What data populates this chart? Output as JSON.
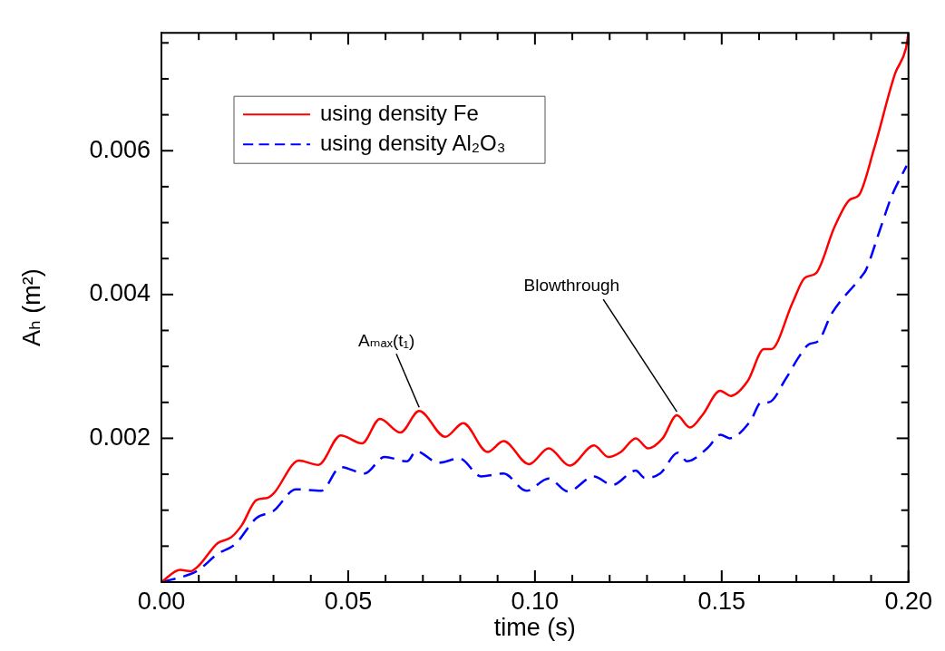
{
  "chart_data": {
    "type": "line",
    "xlabel": "time (s)",
    "ylabel": "Aₕ (m²)",
    "xlim": [
      0,
      0.2
    ],
    "ylim": [
      0,
      0.00764
    ],
    "xticks": [
      {
        "value": 0,
        "label": "0.00"
      },
      {
        "value": 0.01,
        "label": null
      },
      {
        "value": 0.02,
        "label": null
      },
      {
        "value": 0.03,
        "label": null
      },
      {
        "value": 0.04,
        "label": null
      },
      {
        "value": 0.05,
        "label": "0.05"
      },
      {
        "value": 0.06,
        "label": null
      },
      {
        "value": 0.07,
        "label": null
      },
      {
        "value": 0.08,
        "label": null
      },
      {
        "value": 0.09,
        "label": null
      },
      {
        "value": 0.1,
        "label": "0.10"
      },
      {
        "value": 0.11,
        "label": null
      },
      {
        "value": 0.12,
        "label": null
      },
      {
        "value": 0.13,
        "label": null
      },
      {
        "value": 0.14,
        "label": null
      },
      {
        "value": 0.15,
        "label": "0.15"
      },
      {
        "value": 0.16,
        "label": null
      },
      {
        "value": 0.17,
        "label": null
      },
      {
        "value": 0.18,
        "label": null
      },
      {
        "value": 0.19,
        "label": null
      },
      {
        "value": 0.2,
        "label": "0.20"
      }
    ],
    "yticks": [
      {
        "value": 0.0005,
        "label": null
      },
      {
        "value": 0.001,
        "label": null
      },
      {
        "value": 0.0015,
        "label": null
      },
      0.002,
      {
        "value": 0.0025,
        "label": null
      },
      {
        "value": 0.003,
        "label": null
      },
      {
        "value": 0.0035,
        "label": null
      },
      0.004,
      {
        "value": 0.0045,
        "label": null
      },
      {
        "value": 0.005,
        "label": null
      },
      {
        "value": 0.0055,
        "label": null
      },
      0.006,
      {
        "value": 0.0065,
        "label": null
      },
      {
        "value": 0.007,
        "label": null
      },
      {
        "value": 0.0075,
        "label": null
      }
    ],
    "grid": false,
    "legend": "top left",
    "series": [
      {
        "name": "using density Fe",
        "color": "#ff0000",
        "line_style": "solid",
        "x": [
          0,
          0.005,
          0.0077,
          0.01,
          0.015,
          0.0186,
          0.0215,
          0.0254,
          0.0283,
          0.03,
          0.0368,
          0.042,
          0.048,
          0.0537,
          0.0585,
          0.064,
          0.069,
          0.076,
          0.0808,
          0.0873,
          0.0916,
          0.0984,
          0.1037,
          0.1093,
          0.1158,
          0.1197,
          0.123,
          0.127,
          0.1303,
          0.1342,
          0.138,
          0.1415,
          0.1448,
          0.1496,
          0.1524,
          0.157,
          0.1613,
          0.1632,
          0.169,
          0.1722,
          0.1753,
          0.1802,
          0.1843,
          0.1867,
          0.1908,
          0.1964,
          0.1993,
          0.2
        ],
        "values": [
          0,
          0.00017,
          0.00015,
          0.00023,
          0.00054,
          0.00062,
          0.00079,
          0.00114,
          0.00117,
          0.00123,
          0.00169,
          0.00163,
          0.00204,
          0.00193,
          0.00227,
          0.00208,
          0.00238,
          0.00202,
          0.00221,
          0.00181,
          0.00196,
          0.00164,
          0.00186,
          0.00162,
          0.0019,
          0.00174,
          0.00181,
          0.002,
          0.00186,
          0.002,
          0.00232,
          0.00215,
          0.00232,
          0.00266,
          0.00259,
          0.0028,
          0.00324,
          0.00324,
          0.00389,
          0.00423,
          0.0043,
          0.00494,
          0.00532,
          0.00538,
          0.00603,
          0.00707,
          0.00742,
          0.00764
        ]
      },
      {
        "name": "using density Al₂O₃",
        "color": "#0000ff",
        "line_style": "dashed",
        "x": [
          0,
          0.0077,
          0.01,
          0.015,
          0.0198,
          0.0254,
          0.03,
          0.036,
          0.0428,
          0.048,
          0.0544,
          0.0597,
          0.0658,
          0.0682,
          0.0742,
          0.0798,
          0.0856,
          0.0916,
          0.0977,
          0.1037,
          0.1088,
          0.1158,
          0.1207,
          0.127,
          0.1294,
          0.1335,
          0.1383,
          0.1407,
          0.1463,
          0.1497,
          0.1521,
          0.1577,
          0.1606,
          0.1625,
          0.1673,
          0.1705,
          0.1734,
          0.1758,
          0.1794,
          0.1874,
          0.1886,
          0.1923,
          0.1956,
          0.1995
        ],
        "values": [
          0,
          0.00011,
          0.00017,
          0.00039,
          0.00053,
          0.00089,
          0.00099,
          0.00129,
          0.00127,
          0.0016,
          0.00151,
          0.00174,
          0.00168,
          0.00182,
          0.00166,
          0.00172,
          0.00147,
          0.00151,
          0.00127,
          0.00144,
          0.00126,
          0.00147,
          0.00135,
          0.00155,
          0.00145,
          0.00151,
          0.0018,
          0.00168,
          0.00187,
          0.00205,
          0.002,
          0.00224,
          0.0025,
          0.0025,
          0.00284,
          0.00312,
          0.00331,
          0.00335,
          0.00373,
          0.00425,
          0.00434,
          0.00489,
          0.00538,
          0.00579
        ]
      }
    ],
    "annotations": [
      {
        "text": "Aₘₐₓ(t₁)",
        "x": 0.069,
        "y": 0.00238
      },
      {
        "text": "Blowthrough",
        "x": 0.138,
        "y": 0.00232
      }
    ]
  }
}
